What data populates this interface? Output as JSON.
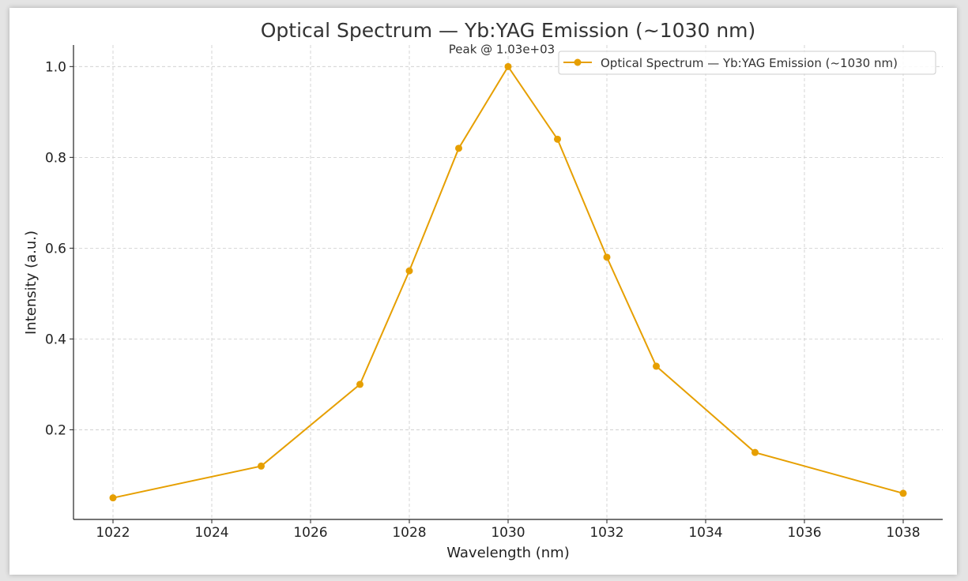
{
  "chart_data": {
    "type": "line",
    "title": "Optical Spectrum — Yb:YAG Emission (~1030 nm)",
    "xlabel": "Wavelength (nm)",
    "ylabel": "Intensity (a.u.)",
    "x": [
      1022,
      1025,
      1027,
      1028,
      1029,
      1030,
      1031,
      1032,
      1033,
      1035,
      1038
    ],
    "series": [
      {
        "name": "Optical Spectrum — Yb:YAG Emission (~1030 nm)",
        "values": [
          0.05,
          0.12,
          0.3,
          0.55,
          0.82,
          1.0,
          0.84,
          0.58,
          0.34,
          0.15,
          0.06
        ],
        "color": "#E69F00"
      }
    ],
    "xlim": [
      1021.2,
      1038.8
    ],
    "ylim": [
      0.0025,
      1.0475
    ],
    "xticks": [
      1022,
      1024,
      1026,
      1028,
      1030,
      1032,
      1034,
      1036,
      1038
    ],
    "xtick_labels": [
      "1022",
      "1024",
      "1026",
      "1028",
      "1030",
      "1032",
      "1034",
      "1036",
      "1038"
    ],
    "yticks": [
      0.2,
      0.4,
      0.6,
      0.8,
      1.0
    ],
    "ytick_labels": [
      "0.2",
      "0.4",
      "0.6",
      "0.8",
      "1.0"
    ],
    "grid": true,
    "legend": "top-right",
    "annotation": {
      "text": "Peak @ 1.03e+03",
      "x": 1030,
      "y": 1.0
    }
  }
}
